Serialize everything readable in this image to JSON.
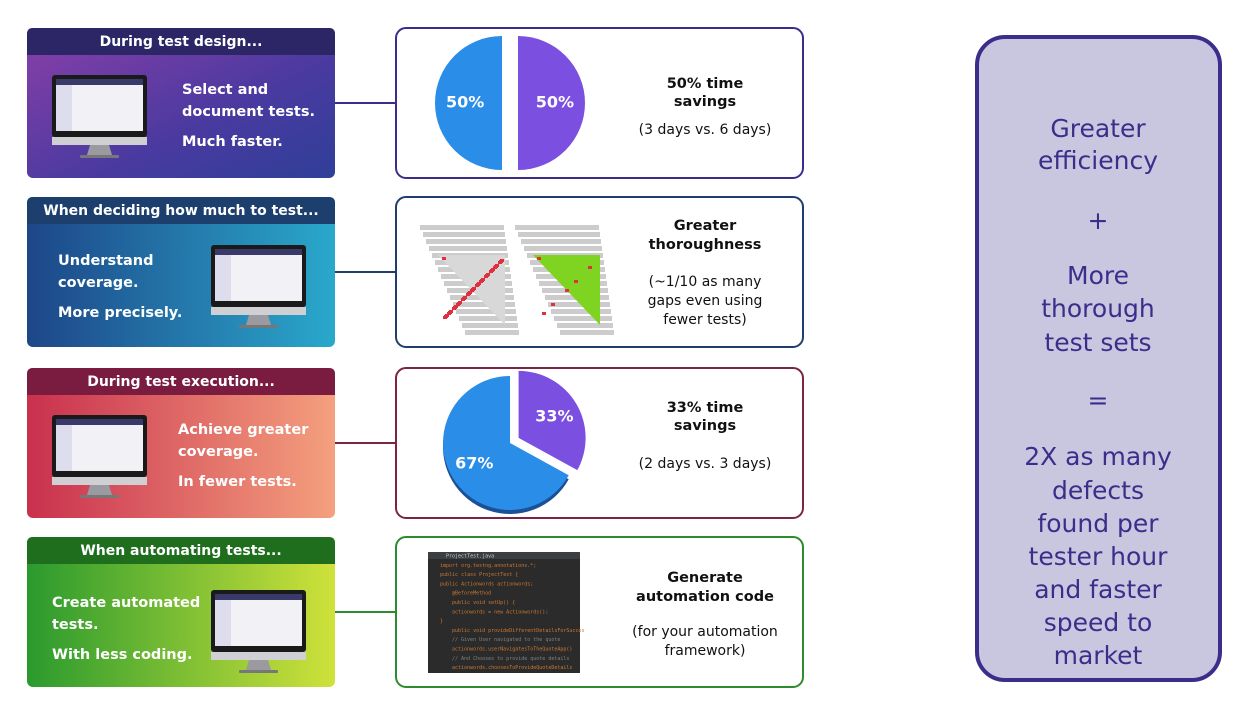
{
  "rows": [
    {
      "header": "During test design...",
      "lines": [
        "Select and",
        "document tests.",
        "Much faster."
      ],
      "title": [
        "50% time",
        "savings"
      ],
      "subtitle": [
        "(3 days vs. 6 days)"
      ],
      "pie": {
        "values": [
          50,
          50
        ],
        "value_labels": [
          "50%",
          "50%"
        ],
        "colors": [
          "#7b4fe0",
          "#2a8de8"
        ]
      }
    },
    {
      "header": "When deciding how much to test...",
      "lines": [
        "Understand",
        "coverage.",
        "More precisely."
      ],
      "title": [
        "Greater",
        "thoroughness"
      ],
      "subtitle": [
        "(~1/10 as many",
        "gaps even using",
        "fewer tests)"
      ]
    },
    {
      "header": "During test execution...",
      "lines": [
        "Achieve greater",
        "coverage.",
        "In fewer tests."
      ],
      "title": [
        "33% time",
        "savings"
      ],
      "subtitle": [
        "(2 days vs. 3 days)"
      ],
      "pie": {
        "values": [
          33,
          67
        ],
        "value_labels": [
          "33%",
          "67%"
        ],
        "colors": [
          "#7b4fe0",
          "#2a8de8"
        ]
      }
    },
    {
      "header": "When automating tests...",
      "lines": [
        "Create automated",
        "tests.",
        "With less coding."
      ],
      "title": [
        "Generate",
        "automation code"
      ],
      "subtitle": [
        "(for your automation",
        "framework)"
      ],
      "code": [
        "ProjectTest.java",
        "import org.testng.annotations.*;",
        "public class ProjectTest {",
        "public Actionwords actionwords;",
        "@BeforeMethod",
        "public void setUp() {",
        "actionwords = new Actionwords();",
        "}",
        "public void provideDifferentDetailsForSucces",
        "// Given User navigated to the quote",
        "actionwords.userNavigatesToTheQuoteApp()",
        "// And Chooses to provide quote details",
        "actionwords.choosesToProvideQuoteDetails"
      ]
    }
  ],
  "panel": {
    "lines": [
      "Greater",
      "efficiency",
      "+",
      "More",
      "thorough",
      "test sets",
      "=",
      "2X as many",
      "defects",
      "found per",
      "tester hour",
      "and faster",
      "speed to",
      "market"
    ]
  }
}
